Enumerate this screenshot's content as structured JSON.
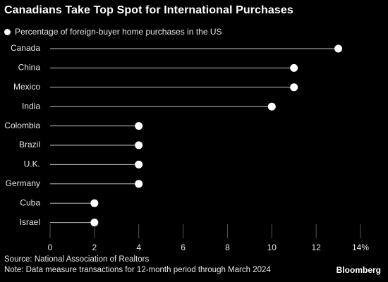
{
  "header": {
    "title": "Canadians Take Top Spot for International Purchases"
  },
  "footer": {
    "source": "Source: National Association of Realtors",
    "note": "Note: Data measure transactions for 12-month period through March 2024",
    "brand": "Bloomberg"
  },
  "colors": {
    "background": "#000000",
    "dot": "#ffffff",
    "stem": "#bfbfbf",
    "text": "#e6e6e6"
  },
  "chart_data": {
    "type": "lollipop",
    "title": "Canadians Take Top Spot for International Purchases",
    "legend": "Percentage of foreign-buyer home purchases in the US",
    "legend_position": "top-left",
    "categories": [
      "Canada",
      "China",
      "Mexico",
      "India",
      "Colombia",
      "Brazil",
      "U.K.",
      "Germany",
      "Cuba",
      "Israel"
    ],
    "values": [
      13,
      11,
      11,
      10,
      4,
      4,
      4,
      4,
      2,
      2
    ],
    "xlim": [
      0,
      14
    ],
    "xticks": [
      0,
      2,
      4,
      6,
      8,
      10,
      12,
      14
    ],
    "xtick_labels": [
      "0",
      "2",
      "4",
      "6",
      "8",
      "10",
      "12",
      "14%"
    ],
    "grid": true
  }
}
